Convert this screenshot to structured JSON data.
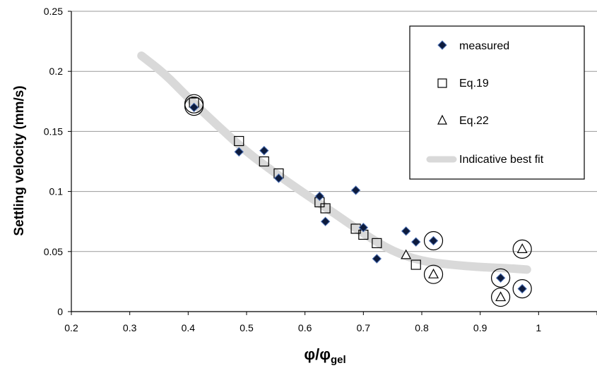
{
  "chart_data": {
    "type": "scatter",
    "title": "",
    "ylabel": "Settling velocity (mm/s)",
    "xlabel_main": "φ/φ",
    "xlabel_sub": "gel",
    "xlim": [
      0.2,
      1.1
    ],
    "ylim": [
      0,
      0.25
    ],
    "x_ticks": [
      "0.2",
      "0.3",
      "0.4",
      "0.5",
      "0.6",
      "0.7",
      "0.8",
      "0.9",
      "1"
    ],
    "y_ticks": [
      "0",
      "0.05",
      "0.1",
      "0.15",
      "0.2",
      "0.25"
    ],
    "grid": "horizontal",
    "legend_position": "top-right",
    "colors": {
      "measured_fill": "#0d1b3d",
      "measured_edge": "#4a6fb5",
      "fit_line": "#d9d9d9",
      "axis": "#000000",
      "grid": "#9a9a9a"
    },
    "series": [
      {
        "name": "measured",
        "marker": "diamond",
        "points": [
          [
            0.41,
            0.17
          ],
          [
            0.487,
            0.133
          ],
          [
            0.53,
            0.134
          ],
          [
            0.555,
            0.111
          ],
          [
            0.625,
            0.096
          ],
          [
            0.635,
            0.075
          ],
          [
            0.687,
            0.101
          ],
          [
            0.7,
            0.07
          ],
          [
            0.723,
            0.044
          ],
          [
            0.773,
            0.067
          ],
          [
            0.79,
            0.058
          ],
          [
            0.82,
            0.059
          ],
          [
            0.935,
            0.028
          ],
          [
            0.972,
            0.019
          ]
        ]
      },
      {
        "name": "Eq.19",
        "marker": "square",
        "points": [
          [
            0.41,
            0.174
          ],
          [
            0.487,
            0.142
          ],
          [
            0.53,
            0.125
          ],
          [
            0.555,
            0.115
          ],
          [
            0.625,
            0.091
          ],
          [
            0.635,
            0.086
          ],
          [
            0.687,
            0.069
          ],
          [
            0.7,
            0.064
          ],
          [
            0.723,
            0.057
          ],
          [
            0.79,
            0.039
          ]
        ]
      },
      {
        "name": "Eq.22",
        "marker": "triangle",
        "points": [
          [
            0.773,
            0.047
          ],
          [
            0.82,
            0.031
          ],
          [
            0.935,
            0.012
          ],
          [
            0.972,
            0.052
          ]
        ]
      },
      {
        "name": "Indicative best fit",
        "marker": "none",
        "points": [
          [
            0.32,
            0.213
          ],
          [
            0.36,
            0.198
          ],
          [
            0.4,
            0.178
          ],
          [
            0.45,
            0.155
          ],
          [
            0.5,
            0.133
          ],
          [
            0.55,
            0.115
          ],
          [
            0.6,
            0.098
          ],
          [
            0.65,
            0.082
          ],
          [
            0.7,
            0.065
          ],
          [
            0.75,
            0.05
          ],
          [
            0.8,
            0.042
          ],
          [
            0.85,
            0.039
          ],
          [
            0.9,
            0.037
          ],
          [
            0.95,
            0.036
          ],
          [
            0.98,
            0.035
          ]
        ]
      }
    ],
    "circled_points": [
      [
        0.41,
        0.173
      ],
      [
        0.41,
        0.171
      ],
      [
        0.82,
        0.059
      ],
      [
        0.82,
        0.031
      ],
      [
        0.935,
        0.028
      ],
      [
        0.935,
        0.012
      ],
      [
        0.972,
        0.052
      ],
      [
        0.972,
        0.019
      ]
    ]
  }
}
